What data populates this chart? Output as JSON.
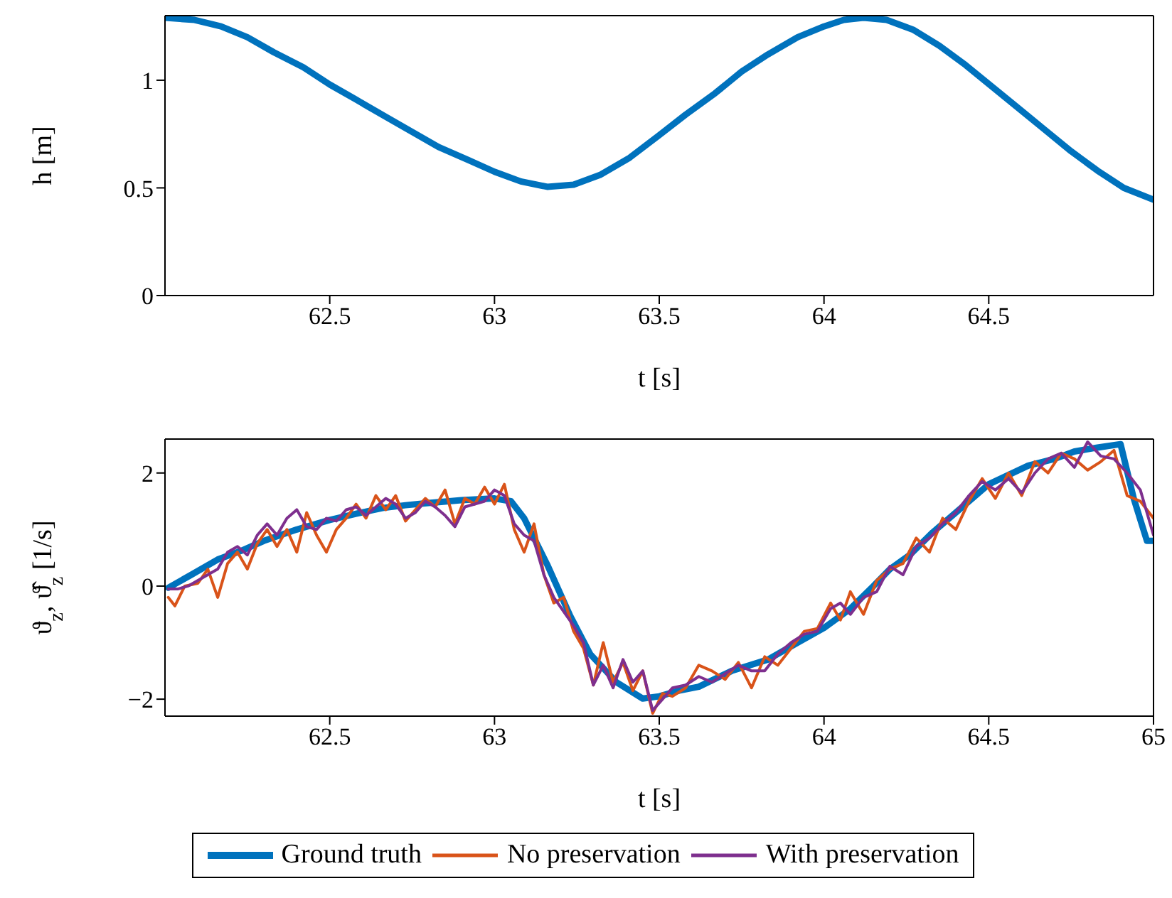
{
  "chart_data": [
    {
      "type": "line",
      "xlabel": "t [s]",
      "ylabel": "h [m]",
      "xlim": [
        62,
        65
      ],
      "ylim": [
        0,
        1.3
      ],
      "xticks": [
        62.5,
        63,
        63.5,
        64,
        64.5
      ],
      "yticks": [
        0,
        0.5,
        1
      ],
      "legend": false,
      "series": [
        {
          "color": "#0072bd",
          "x": [
            62.0,
            62.09,
            62.17,
            62.25,
            62.33,
            62.42,
            62.5,
            62.58,
            62.67,
            62.75,
            62.83,
            62.92,
            63.0,
            63.08,
            63.16,
            63.24,
            63.32,
            63.41,
            63.5,
            63.58,
            63.67,
            63.75,
            63.83,
            63.92,
            64.0,
            64.06,
            64.12,
            64.19,
            64.27,
            64.35,
            64.43,
            64.51,
            64.59,
            64.67,
            64.75,
            64.83,
            64.91,
            65.0
          ],
          "values": [
            1.29,
            1.28,
            1.25,
            1.2,
            1.13,
            1.06,
            0.98,
            0.91,
            0.83,
            0.76,
            0.69,
            0.63,
            0.575,
            0.53,
            0.505,
            0.515,
            0.56,
            0.64,
            0.745,
            0.84,
            0.94,
            1.04,
            1.12,
            1.2,
            1.25,
            1.28,
            1.29,
            1.28,
            1.235,
            1.16,
            1.07,
            0.97,
            0.87,
            0.77,
            0.67,
            0.58,
            0.5,
            0.445
          ]
        }
      ]
    },
    {
      "type": "line",
      "xlabel": "t [s]",
      "ylabel": "ϑ$_{z}$, ϑ̂$_{z}$ [1/s]",
      "xlim": [
        62,
        65
      ],
      "ylim": [
        -2.3,
        2.6
      ],
      "xticks": [
        62.5,
        63,
        63.5,
        64,
        64.5,
        65
      ],
      "yticks": [
        -2,
        0,
        2
      ],
      "legend": "bottom",
      "series": [
        {
          "name": "Ground truth",
          "color": "#0072bd",
          "x": [
            62.01,
            62.08,
            62.16,
            62.23,
            62.3,
            62.4,
            62.5,
            62.58,
            62.66,
            62.73,
            62.8,
            62.9,
            63.0,
            63.05,
            63.09,
            63.16,
            63.23,
            63.29,
            63.37,
            63.45,
            63.5,
            63.56,
            63.62,
            63.72,
            63.83,
            63.92,
            64.0,
            64.08,
            64.15,
            64.2,
            64.26,
            64.33,
            64.4,
            64.5,
            64.62,
            64.7,
            64.76,
            64.83,
            64.9,
            64.94,
            64.98,
            65.0
          ],
          "values": [
            -0.03,
            0.2,
            0.47,
            0.62,
            0.8,
            1.0,
            1.17,
            1.28,
            1.38,
            1.43,
            1.47,
            1.52,
            1.55,
            1.5,
            1.2,
            0.38,
            -0.53,
            -1.2,
            -1.7,
            -1.99,
            -1.95,
            -1.85,
            -1.78,
            -1.5,
            -1.3,
            -1.0,
            -0.74,
            -0.4,
            0.0,
            0.3,
            0.55,
            0.95,
            1.3,
            1.8,
            2.13,
            2.25,
            2.38,
            2.45,
            2.51,
            1.55,
            0.8,
            0.8
          ]
        },
        {
          "name": "No preservation",
          "color": "#d95319",
          "x": [
            62.01,
            62.03,
            62.06,
            62.1,
            62.13,
            62.16,
            62.19,
            62.22,
            62.25,
            62.28,
            62.31,
            62.34,
            62.37,
            62.4,
            62.43,
            62.46,
            62.49,
            62.52,
            62.55,
            62.58,
            62.61,
            62.64,
            62.67,
            62.7,
            62.73,
            62.76,
            62.79,
            62.82,
            62.85,
            62.88,
            62.91,
            62.94,
            62.97,
            63.0,
            63.03,
            63.06,
            63.09,
            63.12,
            63.15,
            63.18,
            63.21,
            63.24,
            63.27,
            63.3,
            63.33,
            63.36,
            63.39,
            63.42,
            63.45,
            63.48,
            63.51,
            63.54,
            63.58,
            63.62,
            63.66,
            63.7,
            63.74,
            63.78,
            63.82,
            63.86,
            63.9,
            63.94,
            63.98,
            64.02,
            64.05,
            64.08,
            64.12,
            64.16,
            64.2,
            64.24,
            64.28,
            64.32,
            64.36,
            64.4,
            64.44,
            64.48,
            64.52,
            64.56,
            64.6,
            64.64,
            64.68,
            64.72,
            64.76,
            64.8,
            64.84,
            64.88,
            64.92,
            64.96,
            65.0
          ],
          "values": [
            -0.2,
            -0.35,
            0.0,
            0.05,
            0.3,
            -0.2,
            0.4,
            0.6,
            0.3,
            0.75,
            1.0,
            0.7,
            1.0,
            0.6,
            1.3,
            0.9,
            0.6,
            1.0,
            1.2,
            1.45,
            1.2,
            1.6,
            1.35,
            1.6,
            1.15,
            1.35,
            1.55,
            1.4,
            1.7,
            1.1,
            1.55,
            1.45,
            1.75,
            1.45,
            1.8,
            1.0,
            0.6,
            1.1,
            0.2,
            -0.3,
            -0.2,
            -0.8,
            -1.1,
            -1.75,
            -1.0,
            -1.7,
            -1.35,
            -1.85,
            -1.5,
            -2.25,
            -1.9,
            -1.95,
            -1.8,
            -1.4,
            -1.5,
            -1.65,
            -1.35,
            -1.8,
            -1.25,
            -1.4,
            -1.1,
            -0.8,
            -0.75,
            -0.3,
            -0.6,
            -0.1,
            -0.5,
            0.1,
            0.3,
            0.4,
            0.85,
            0.6,
            1.2,
            1.0,
            1.5,
            1.9,
            1.55,
            2.0,
            1.6,
            2.2,
            2.0,
            2.35,
            2.25,
            2.05,
            2.2,
            2.4,
            1.6,
            1.5,
            1.2
          ]
        },
        {
          "name": "With preservation",
          "color": "#7e2f8e",
          "x": [
            62.01,
            62.04,
            62.07,
            62.1,
            62.13,
            62.16,
            62.19,
            62.22,
            62.25,
            62.28,
            62.31,
            62.34,
            62.37,
            62.4,
            62.43,
            62.46,
            62.49,
            62.52,
            62.55,
            62.58,
            62.61,
            62.64,
            62.67,
            62.7,
            62.73,
            62.76,
            62.79,
            62.82,
            62.85,
            62.88,
            62.91,
            62.94,
            62.97,
            63.0,
            63.03,
            63.06,
            63.09,
            63.12,
            63.15,
            63.18,
            63.21,
            63.24,
            63.27,
            63.3,
            63.33,
            63.36,
            63.39,
            63.42,
            63.45,
            63.48,
            63.51,
            63.54,
            63.58,
            63.62,
            63.66,
            63.7,
            63.74,
            63.78,
            63.82,
            63.86,
            63.9,
            63.94,
            63.98,
            64.02,
            64.05,
            64.08,
            64.12,
            64.16,
            64.2,
            64.24,
            64.28,
            64.32,
            64.36,
            64.4,
            64.44,
            64.48,
            64.52,
            64.56,
            64.6,
            64.64,
            64.68,
            64.72,
            64.76,
            64.8,
            64.84,
            64.88,
            64.92,
            64.96,
            65.0
          ],
          "values": [
            -0.05,
            -0.05,
            0.0,
            0.1,
            0.2,
            0.3,
            0.6,
            0.7,
            0.55,
            0.9,
            1.1,
            0.9,
            1.2,
            1.35,
            1.05,
            1.0,
            1.2,
            1.15,
            1.35,
            1.4,
            1.25,
            1.4,
            1.55,
            1.45,
            1.2,
            1.3,
            1.5,
            1.4,
            1.25,
            1.05,
            1.4,
            1.45,
            1.5,
            1.7,
            1.6,
            1.1,
            0.9,
            0.8,
            0.2,
            -0.2,
            -0.45,
            -0.7,
            -1.0,
            -1.75,
            -1.4,
            -1.8,
            -1.3,
            -1.7,
            -1.5,
            -2.2,
            -2.0,
            -1.8,
            -1.75,
            -1.6,
            -1.7,
            -1.55,
            -1.4,
            -1.5,
            -1.5,
            -1.2,
            -1.0,
            -0.85,
            -0.8,
            -0.4,
            -0.3,
            -0.5,
            -0.2,
            -0.1,
            0.35,
            0.2,
            0.7,
            0.85,
            1.1,
            1.3,
            1.6,
            1.85,
            1.7,
            1.9,
            1.65,
            2.0,
            2.25,
            2.35,
            2.1,
            2.55,
            2.3,
            2.25,
            2.0,
            1.7,
            0.9
          ]
        }
      ]
    }
  ]
}
